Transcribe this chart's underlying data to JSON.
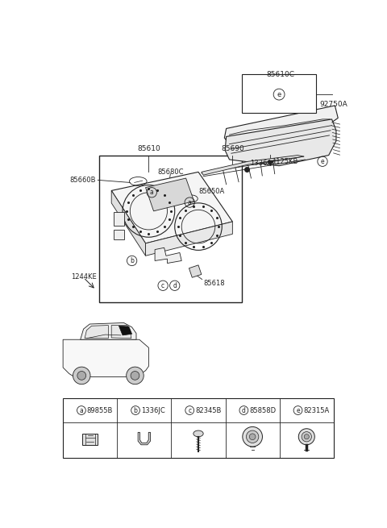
{
  "bg_color": "#ffffff",
  "line_color": "#222222",
  "fig_width": 4.8,
  "fig_height": 6.55,
  "dpi": 100,
  "legend_items": [
    {
      "circle": "a",
      "code": "89855B"
    },
    {
      "circle": "b",
      "code": "1336JC"
    },
    {
      "circle": "c",
      "code": "82345B"
    },
    {
      "circle": "d",
      "code": "85858D"
    },
    {
      "circle": "e",
      "code": "82315A"
    }
  ]
}
